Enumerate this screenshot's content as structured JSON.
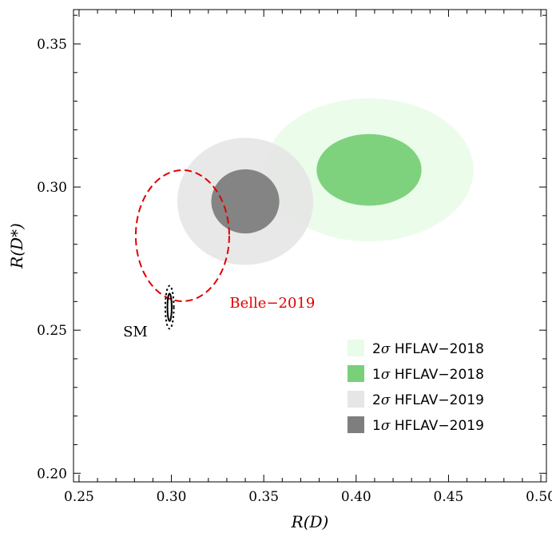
{
  "chart_data": {
    "type": "scatter",
    "title": "",
    "xlabel": "R(D)",
    "ylabel": "R(D*)",
    "xlim": [
      0.247,
      0.503
    ],
    "ylim": [
      0.197,
      0.362
    ],
    "xticks": [
      0.25,
      0.3,
      0.35,
      0.4,
      0.45,
      0.5
    ],
    "xtick_labels": [
      "0.25",
      "0.30",
      "0.35",
      "0.40",
      "0.45",
      "0.50"
    ],
    "yticks": [
      0.2,
      0.25,
      0.3,
      0.35
    ],
    "ytick_labels": [
      "0.20",
      "0.25",
      "0.30",
      "0.35"
    ],
    "grid": false,
    "legend_position": "bottom-right",
    "regions": [
      {
        "name": "2σ HFLAV−2018",
        "sigma": "2σ",
        "label": "HFLAV−2018",
        "center": [
          0.407,
          0.306
        ],
        "radius": [
          0.0565,
          0.025
        ],
        "color": "#e9fce9",
        "style": "filled"
      },
      {
        "name": "1σ HFLAV−2018",
        "sigma": "1σ",
        "label": "HFLAV−2018",
        "center": [
          0.407,
          0.306
        ],
        "radius": [
          0.0284,
          0.0125
        ],
        "color": "#78d078",
        "style": "filled"
      },
      {
        "name": "2σ HFLAV−2019",
        "sigma": "2σ",
        "label": "HFLAV−2019",
        "center": [
          0.34,
          0.295
        ],
        "radius": [
          0.0368,
          0.0222
        ],
        "color": "#e6e6e6",
        "style": "filled"
      },
      {
        "name": "1σ HFLAV−2019",
        "sigma": "1σ",
        "label": "HFLAV−2019",
        "center": [
          0.34,
          0.295
        ],
        "radius": [
          0.0184,
          0.0112
        ],
        "color": "#7e7e7e",
        "style": "filled"
      },
      {
        "name": "Belle−2019",
        "center": [
          0.306,
          0.283
        ],
        "radius": [
          0.0253,
          0.0229
        ],
        "color": "#e00000",
        "style": "dashed"
      },
      {
        "name": "SM 2σ",
        "center": [
          0.299,
          0.258
        ],
        "radius": [
          0.0023,
          0.0075
        ],
        "color": "#000000",
        "style": "dotted"
      },
      {
        "name": "SM 1σ",
        "center": [
          0.299,
          0.258
        ],
        "radius": [
          0.00115,
          0.0048
        ],
        "color": "#000000",
        "style": "solid"
      }
    ],
    "annotations": [
      {
        "text": "Belle−2019",
        "x": 0.3315,
        "y": 0.2595,
        "color": "#e00000"
      },
      {
        "text": "SM",
        "x": 0.2805,
        "y": 0.2495,
        "color": "#000000"
      }
    ],
    "legend": [
      {
        "sigma": "2σ",
        "label": "HFLAV−2018",
        "color": "#e9fce9"
      },
      {
        "sigma": "1σ",
        "label": "HFLAV−2018",
        "color": "#78d078"
      },
      {
        "sigma": "2σ",
        "label": "HFLAV−2019",
        "color": "#e6e6e6"
      },
      {
        "sigma": "1σ",
        "label": "HFLAV−2019",
        "color": "#7e7e7e"
      }
    ]
  }
}
